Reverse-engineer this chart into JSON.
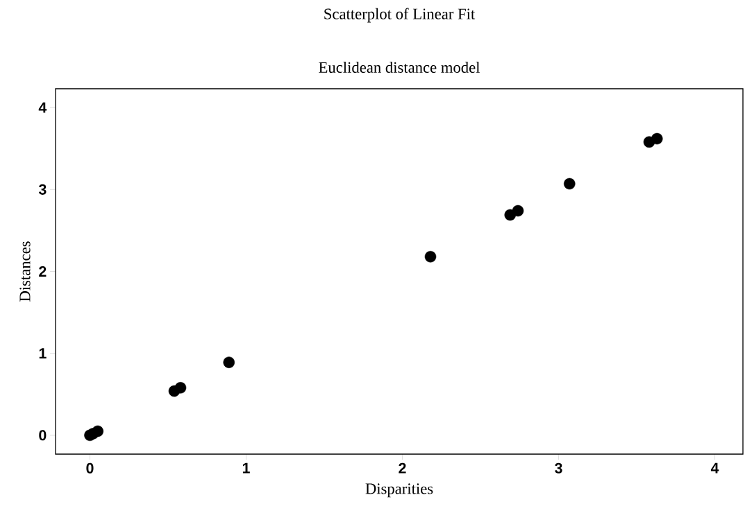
{
  "chart_data": {
    "type": "scatter",
    "title": "Scatterplot of Linear Fit",
    "subtitle": "Euclidean distance model",
    "xlabel": "Disparities",
    "ylabel": "Distances",
    "x": [
      0,
      0.02,
      0.05,
      0.54,
      0.58,
      0.89,
      2.18,
      2.69,
      2.74,
      3.07,
      3.58,
      3.63
    ],
    "series": [
      {
        "color": "#000000",
        "values": [
          0,
          0.02,
          0.05,
          0.54,
          0.58,
          0.89,
          2.18,
          2.69,
          2.74,
          3.07,
          3.58,
          3.62
        ]
      }
    ],
    "xlim": [
      -0.22,
      4.18
    ],
    "ylim": [
      -0.23,
      4.23
    ],
    "xticks": [
      0,
      1,
      2,
      3,
      4
    ],
    "yticks": [
      0,
      1,
      2,
      3,
      4
    ],
    "grid": false
  }
}
